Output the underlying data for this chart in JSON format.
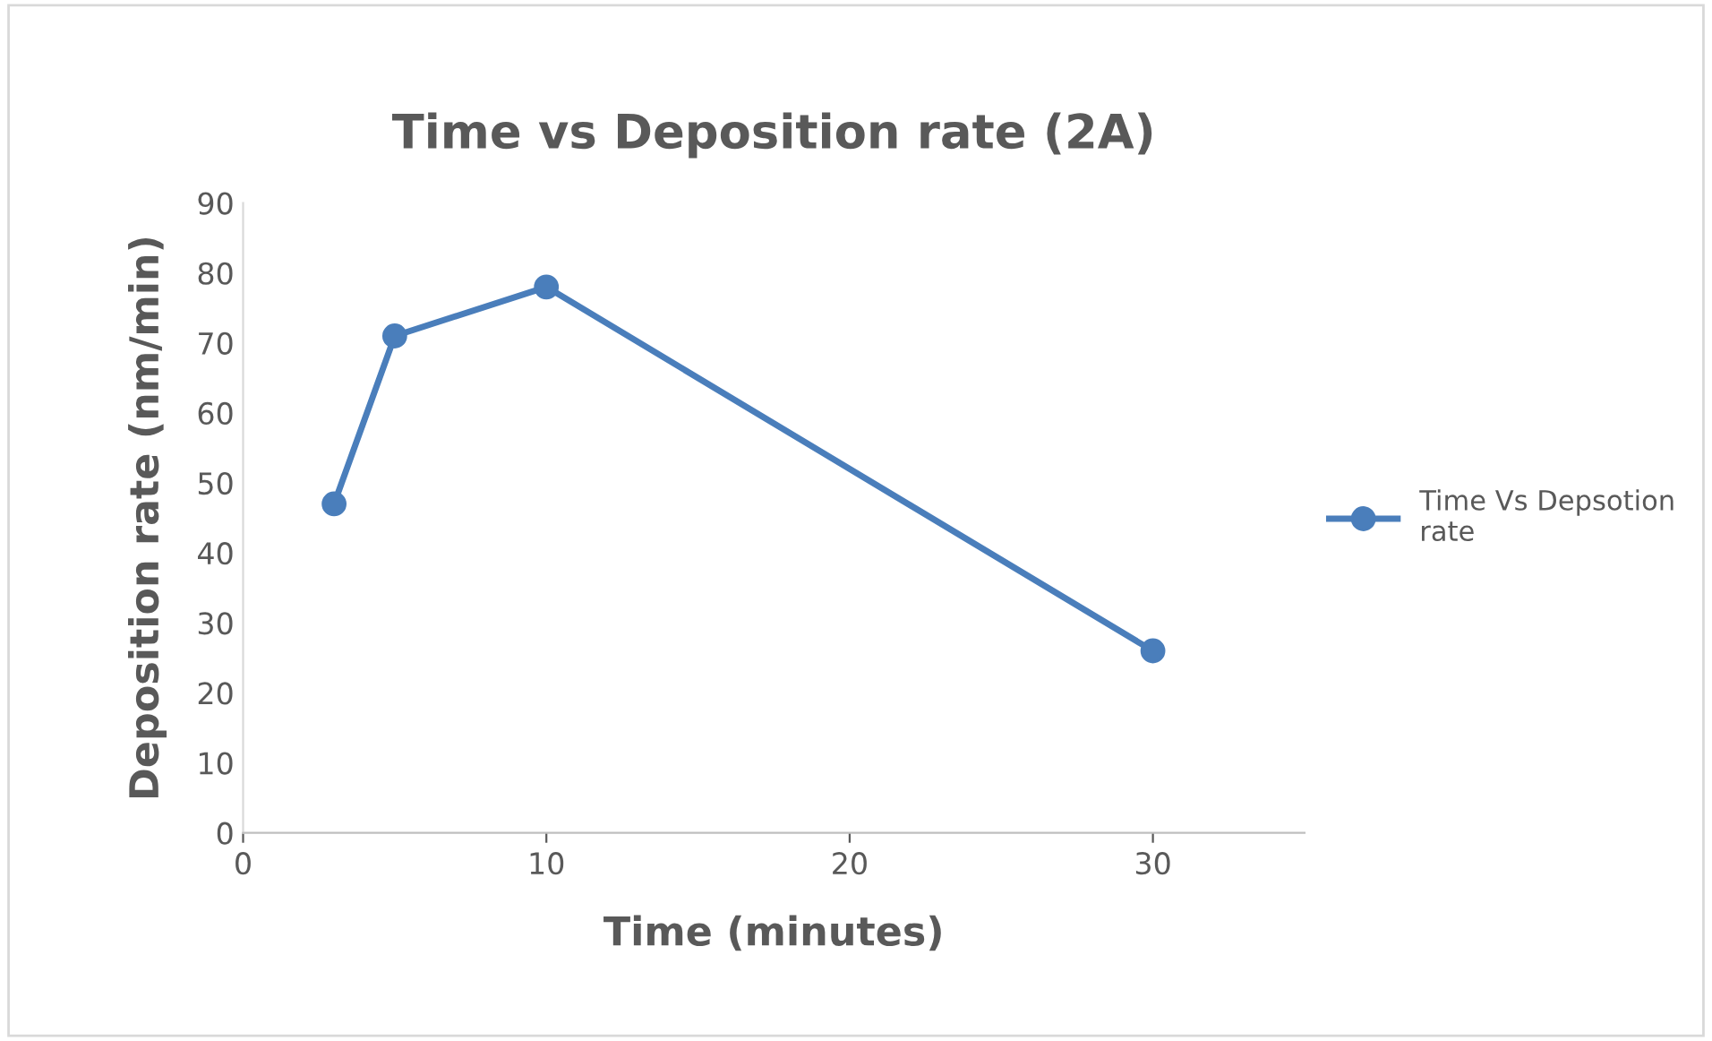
{
  "chart_data": {
    "type": "line",
    "title": "Time vs Deposition rate (2A)",
    "xlabel": "Time (minutes)",
    "ylabel": "Deposition rate (nm/min)",
    "x": [
      3,
      5,
      10,
      30
    ],
    "series": [
      {
        "name": "Time Vs Depsotion\nrate",
        "color": "#4a7ebb",
        "values": [
          47,
          71,
          78,
          26
        ]
      }
    ],
    "xlim": [
      0,
      35
    ],
    "xticks": [
      0,
      10,
      20,
      30
    ],
    "ylim": [
      0,
      90
    ],
    "yticks": [
      0,
      10,
      20,
      30,
      40,
      50,
      60,
      70,
      80,
      90
    ],
    "grid": false,
    "legend": "right",
    "marker": "circle",
    "line_style": "solid"
  }
}
